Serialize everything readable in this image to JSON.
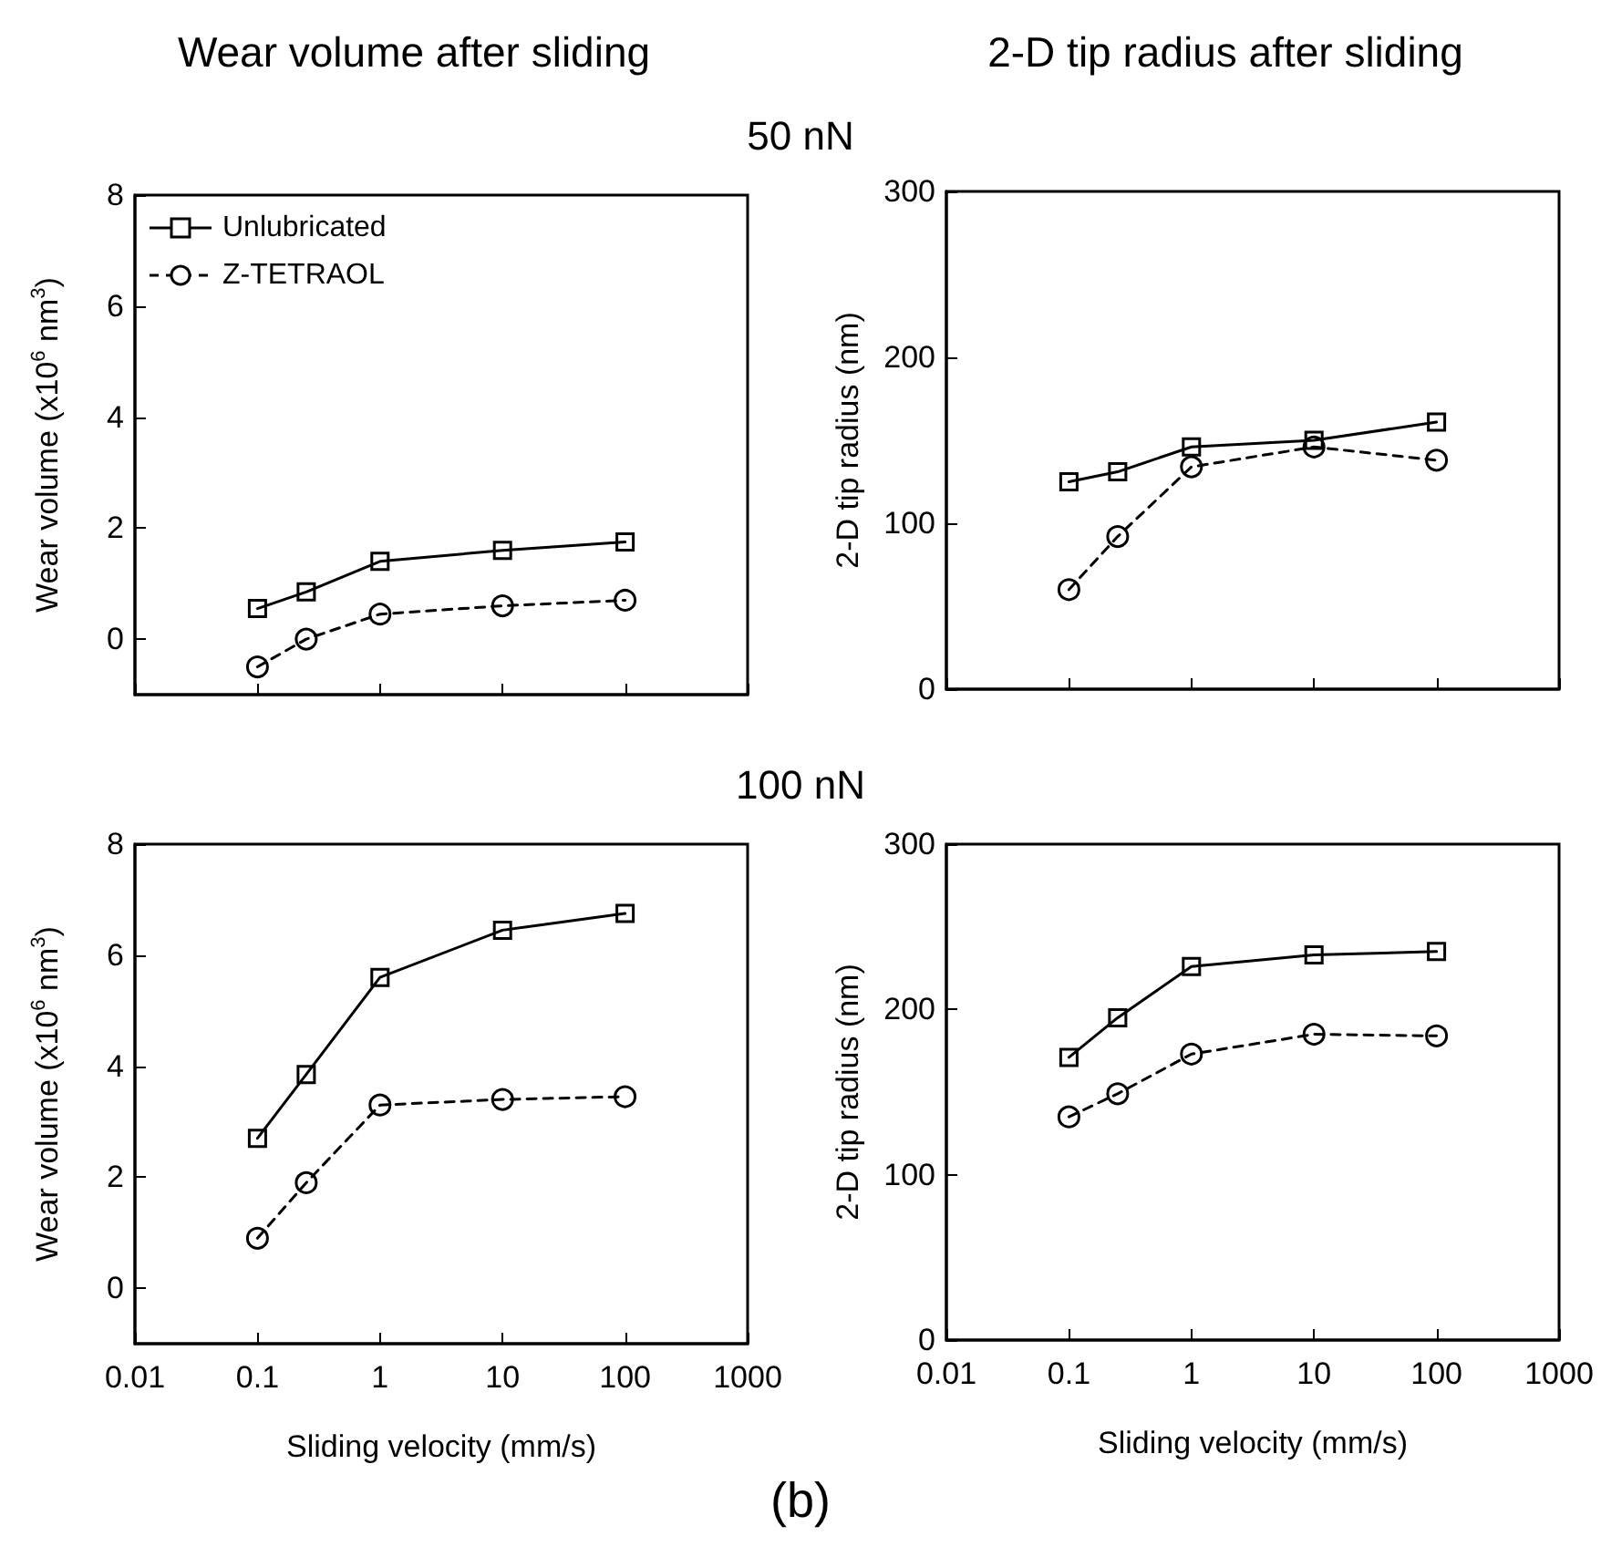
{
  "chart_data": [
    {
      "type": "line",
      "title": "Wear volume after sliding",
      "ylabel": "Wear volume (x10$^{6}$ nm$^{3}$)",
      "annotations": [
        "50 nN"
      ],
      "x": [
        0.1,
        0.25,
        1,
        10,
        100
      ],
      "log": "x",
      "xlim": [
        0.01,
        1000
      ],
      "xticks": [
        0.01,
        0.1,
        1,
        10,
        100,
        1000
      ],
      "ylim": [
        -1,
        8
      ],
      "yticks": [
        0,
        2,
        4,
        6,
        8
      ],
      "tick_labels": "y",
      "grid": false,
      "legend": "top left",
      "series": [
        {
          "name": "Unlubricated",
          "color": "#000000",
          "marker": "square",
          "line_style": "solid",
          "values": [
            0.55,
            0.85,
            1.4,
            1.6,
            1.75
          ]
        },
        {
          "name": "Z-TETRAOL",
          "color": "#000000",
          "marker": "circle",
          "line_style": "dashed",
          "values": [
            -0.5,
            0.0,
            0.45,
            0.6,
            0.7
          ]
        }
      ]
    },
    {
      "type": "line",
      "title": "2-D tip radius after sliding",
      "ylabel": "2-D tip radius (nm)",
      "x": [
        0.1,
        0.25,
        1,
        10,
        100
      ],
      "log": "x",
      "xlim": [
        0.01,
        1000
      ],
      "xticks": [
        0.01,
        0.1,
        1,
        10,
        100,
        1000
      ],
      "ylim": [
        0,
        300
      ],
      "yticks": [
        0,
        100,
        200,
        300
      ],
      "tick_labels": "y",
      "grid": false,
      "legend": false,
      "series": [
        {
          "color": "#000000",
          "marker": "square",
          "line_style": "solid",
          "values": [
            125,
            131,
            146,
            150,
            161
          ]
        },
        {
          "color": "#000000",
          "marker": "circle",
          "line_style": "dashed",
          "values": [
            60,
            92,
            134,
            146,
            138
          ]
        }
      ]
    },
    {
      "type": "line",
      "xlabel": "Sliding velocity (mm/s)",
      "ylabel": "Wear volume (x10$^{6}$ nm$^{3}$)",
      "annotations": [
        "100 nN",
        "(b)"
      ],
      "x": [
        0.1,
        0.25,
        1,
        10,
        100
      ],
      "log": "x",
      "xlim": [
        0.01,
        1000
      ],
      "xticks": [
        0.01,
        0.1,
        1,
        10,
        100,
        1000
      ],
      "ylim": [
        -1,
        8
      ],
      "yticks": [
        0,
        2,
        4,
        6,
        8
      ],
      "grid": false,
      "legend": false,
      "series": [
        {
          "color": "#000000",
          "marker": "square",
          "line_style": "solid",
          "values": [
            2.7,
            3.85,
            5.6,
            6.45,
            6.75
          ]
        },
        {
          "color": "#000000",
          "marker": "circle",
          "line_style": "dashed",
          "values": [
            0.9,
            1.9,
            3.3,
            3.4,
            3.45
          ]
        }
      ]
    },
    {
      "type": "line",
      "xlabel": "Sliding velocity (mm/s)",
      "ylabel": "2-D tip radius (nm)",
      "x": [
        0.1,
        0.25,
        1,
        10,
        100
      ],
      "log": "x",
      "xlim": [
        0.01,
        1000
      ],
      "xticks": [
        0.01,
        0.1,
        1,
        10,
        100,
        1000
      ],
      "ylim": [
        0,
        300
      ],
      "yticks": [
        0,
        100,
        200,
        300
      ],
      "grid": false,
      "legend": false,
      "series": [
        {
          "color": "#000000",
          "marker": "square",
          "line_style": "solid",
          "values": [
            171,
            195,
            226,
            233,
            235
          ]
        },
        {
          "color": "#000000",
          "marker": "circle",
          "line_style": "dashed",
          "values": [
            135,
            149,
            173,
            185,
            184
          ]
        }
      ]
    }
  ]
}
